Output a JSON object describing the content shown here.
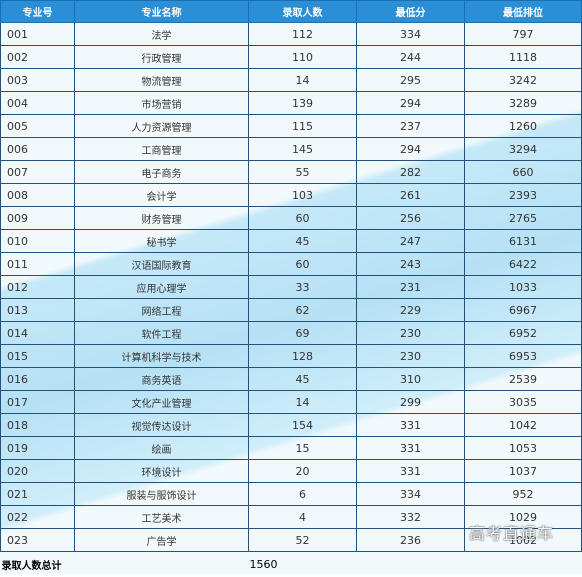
{
  "headers": {
    "code": "专业号",
    "name": "专业名称",
    "enrolled": "录取人数",
    "min_score": "最低分",
    "min_rank": "最低排位"
  },
  "rows": [
    {
      "code": "001",
      "name": "法学",
      "enrolled": "112",
      "min_score": "334",
      "min_rank": "797"
    },
    {
      "code": "002",
      "name": "行政管理",
      "enrolled": "110",
      "min_score": "244",
      "min_rank": "1118"
    },
    {
      "code": "003",
      "name": "物流管理",
      "enrolled": "14",
      "min_score": "295",
      "min_rank": "3242"
    },
    {
      "code": "004",
      "name": "市场营销",
      "enrolled": "139",
      "min_score": "294",
      "min_rank": "3289"
    },
    {
      "code": "005",
      "name": "人力资源管理",
      "enrolled": "115",
      "min_score": "237",
      "min_rank": "1260"
    },
    {
      "code": "006",
      "name": "工商管理",
      "enrolled": "145",
      "min_score": "294",
      "min_rank": "3294"
    },
    {
      "code": "007",
      "name": "电子商务",
      "enrolled": "55",
      "min_score": "282",
      "min_rank": "660"
    },
    {
      "code": "008",
      "name": "会计学",
      "enrolled": "103",
      "min_score": "261",
      "min_rank": "2393"
    },
    {
      "code": "009",
      "name": "财务管理",
      "enrolled": "60",
      "min_score": "256",
      "min_rank": "2765"
    },
    {
      "code": "010",
      "name": "秘书学",
      "enrolled": "45",
      "min_score": "247",
      "min_rank": "6131"
    },
    {
      "code": "011",
      "name": "汉语国际教育",
      "enrolled": "60",
      "min_score": "243",
      "min_rank": "6422"
    },
    {
      "code": "012",
      "name": "应用心理学",
      "enrolled": "33",
      "min_score": "231",
      "min_rank": "1033"
    },
    {
      "code": "013",
      "name": "网络工程",
      "enrolled": "62",
      "min_score": "229",
      "min_rank": "6967"
    },
    {
      "code": "014",
      "name": "软件工程",
      "enrolled": "69",
      "min_score": "230",
      "min_rank": "6952"
    },
    {
      "code": "015",
      "name": "计算机科学与技术",
      "enrolled": "128",
      "min_score": "230",
      "min_rank": "6953"
    },
    {
      "code": "016",
      "name": "商务英语",
      "enrolled": "45",
      "min_score": "310",
      "min_rank": "2539"
    },
    {
      "code": "017",
      "name": "文化产业管理",
      "enrolled": "14",
      "min_score": "299",
      "min_rank": "3035"
    },
    {
      "code": "018",
      "name": "视觉传达设计",
      "enrolled": "154",
      "min_score": "331",
      "min_rank": "1042"
    },
    {
      "code": "019",
      "name": "绘画",
      "enrolled": "15",
      "min_score": "331",
      "min_rank": "1053"
    },
    {
      "code": "020",
      "name": "环境设计",
      "enrolled": "20",
      "min_score": "331",
      "min_rank": "1037"
    },
    {
      "code": "021",
      "name": "服装与服饰设计",
      "enrolled": "6",
      "min_score": "334",
      "min_rank": "952"
    },
    {
      "code": "022",
      "name": "工艺美术",
      "enrolled": "4",
      "min_score": "332",
      "min_rank": "1029"
    },
    {
      "code": "023",
      "name": "广告学",
      "enrolled": "52",
      "min_score": "236",
      "min_rank": "1002"
    }
  ],
  "total": {
    "label": "录取人数总计",
    "value": "1560"
  },
  "watermark": "高考直通车"
}
